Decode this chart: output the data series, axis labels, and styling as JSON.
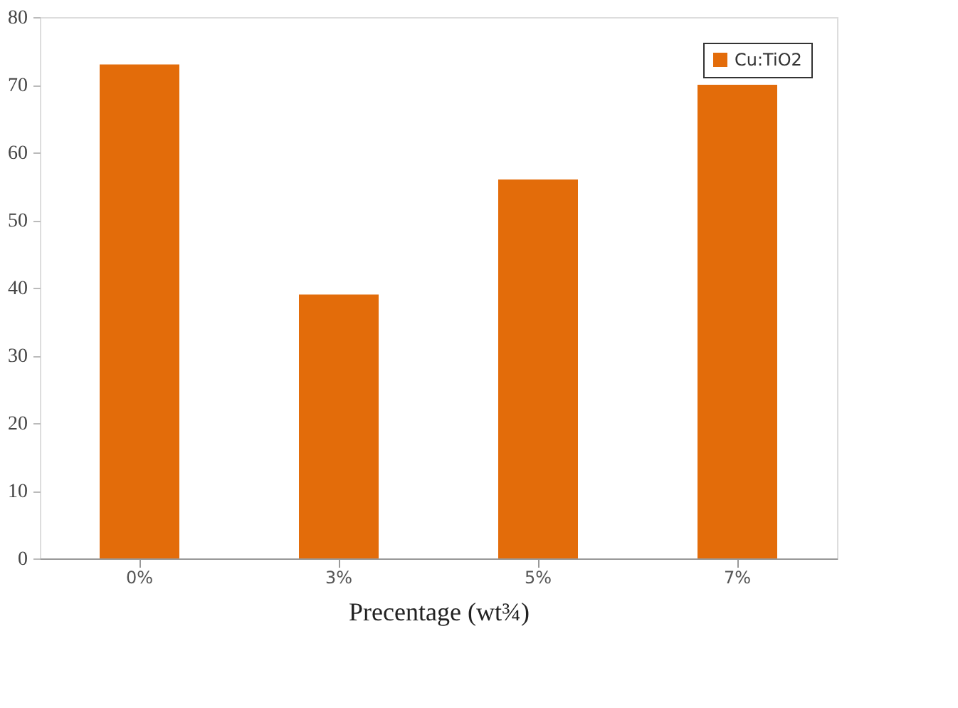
{
  "chart_data": {
    "type": "bar",
    "xlabel": "Precentage (wt¾)",
    "categories": [
      "0%",
      "3%",
      "5%",
      "7%"
    ],
    "series": [
      {
        "name": "Cu:TiO2",
        "color": "#e36c0a",
        "values": [
          73,
          39,
          56,
          70
        ]
      }
    ],
    "ylim": [
      0,
      80
    ],
    "yticks": [
      0,
      10,
      20,
      30,
      40,
      50,
      60,
      70,
      80
    ],
    "grid": false,
    "legend": "top right"
  }
}
